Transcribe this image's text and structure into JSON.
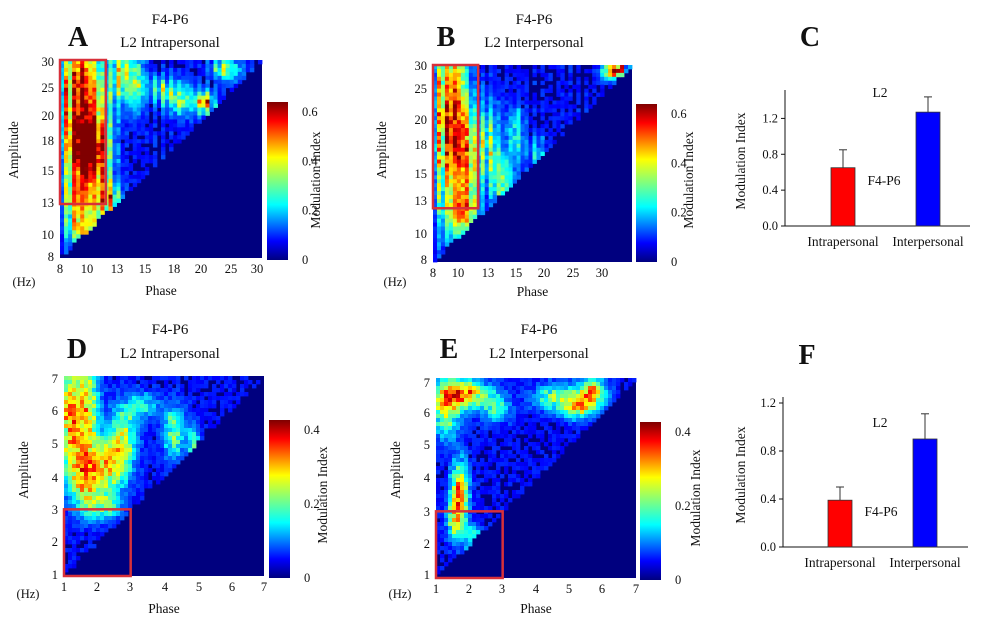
{
  "colors": {
    "bar_intra": "#ff0000",
    "bar_inter": "#0000ff",
    "box": "#d8303a",
    "background": "#00007f"
  },
  "colormap": "jet",
  "panels": [
    {
      "id": "A",
      "letter": "A",
      "title1": "F4-P6",
      "title2": "L2 Intrapersonal",
      "ylabel": "Amplitude",
      "xlabel": "Phase",
      "hz": "(Hz)",
      "xticks": [
        "8",
        "10",
        "13",
        "15",
        "18",
        "20",
        "25",
        "30"
      ],
      "yticks": [
        "8",
        "10",
        "13",
        "15",
        "18",
        "20",
        "25",
        "30"
      ],
      "cbar_label": "Modulation Index",
      "cbar_ticks": [
        "0.6",
        "0.4",
        "0.2",
        "0"
      ]
    },
    {
      "id": "B",
      "letter": "B",
      "title1": "F4-P6",
      "title2": "L2 Interpersonal",
      "ylabel": "Amplitude",
      "xlabel": "Phase",
      "hz": "(Hz)",
      "xticks": [
        "8",
        "10",
        "13",
        "15",
        "20",
        "25",
        "30"
      ],
      "yticks": [
        "8",
        "10",
        "13",
        "15",
        "18",
        "20",
        "25",
        "30"
      ],
      "cbar_label": "Modulation Index",
      "cbar_ticks": [
        "0.6",
        "0.4",
        "0.2",
        "0"
      ]
    },
    {
      "id": "D",
      "letter": "D",
      "title1": "F4-P6",
      "title2": "L2 Intrapersonal",
      "ylabel": "Amplitude",
      "xlabel": "Phase",
      "hz": "(Hz)",
      "xticks": [
        "1",
        "2",
        "3",
        "4",
        "5",
        "6",
        "7"
      ],
      "yticks": [
        "1",
        "2",
        "3",
        "4",
        "5",
        "6",
        "7"
      ],
      "cbar_label": "Modulation Index",
      "cbar_ticks": [
        "0.4",
        "0.2",
        "0"
      ]
    },
    {
      "id": "E",
      "letter": "E",
      "title1": "F4-P6",
      "title2": "L2 Interpersonal",
      "ylabel": "Amplitude",
      "xlabel": "Phase",
      "hz": "(Hz)",
      "xticks": [
        "1",
        "2",
        "3",
        "4",
        "5",
        "6",
        "7"
      ],
      "yticks": [
        "1",
        "2",
        "3",
        "4",
        "5",
        "6",
        "7"
      ],
      "cbar_label": "Modulation Index",
      "cbar_ticks": [
        "0.4",
        "0.2",
        "0"
      ]
    },
    {
      "id": "C",
      "letter": "C",
      "ylabel": "Modulation Index",
      "yticks": [
        "0.0",
        "0.4",
        "0.8",
        "1.2"
      ],
      "series_label": "L2",
      "annot": "F4-P6"
    },
    {
      "id": "F",
      "letter": "F",
      "ylabel": "Modulation Index",
      "yticks": [
        "0.0",
        "0.4",
        "0.8",
        "1.2"
      ],
      "series_label": "L2",
      "annot": "F4-P6"
    }
  ],
  "chart_data": [
    {
      "type": "heatmap",
      "panel": "A",
      "title": "F4-P6 L2 Intrapersonal",
      "xlabel": "Phase",
      "ylabel": "Amplitude",
      "units": "Hz",
      "xlim": [
        8,
        30
      ],
      "ylim": [
        8,
        30
      ],
      "color_range": [
        0,
        0.65
      ],
      "highlight_box": {
        "phase": [
          8,
          13
        ],
        "amplitude": [
          14,
          30
        ]
      },
      "note": "upper-left triangle shows coupling; lower-right triangle zero"
    },
    {
      "type": "heatmap",
      "panel": "B",
      "title": "F4-P6 L2 Interpersonal",
      "xlabel": "Phase",
      "ylabel": "Amplitude",
      "units": "Hz",
      "xlim": [
        8,
        30
      ],
      "ylim": [
        8,
        30
      ],
      "color_range": [
        0,
        0.65
      ],
      "highlight_box": {
        "phase": [
          8,
          13
        ],
        "amplitude": [
          14,
          30
        ]
      }
    },
    {
      "type": "bar",
      "panel": "C",
      "categories": [
        "Intrapersonal",
        "Interpersonal"
      ],
      "values": [
        0.65,
        1.27
      ],
      "errors": [
        0.2,
        0.17
      ],
      "ylim": [
        0,
        1.45
      ],
      "ylabel": "Modulation Index",
      "series": [
        {
          "name": "L2",
          "values": [
            0.65,
            1.27
          ]
        }
      ],
      "annotation": "F4-P6"
    },
    {
      "type": "heatmap",
      "panel": "D",
      "title": "F4-P6 L2 Intrapersonal",
      "xlabel": "Phase",
      "ylabel": "Amplitude",
      "units": "Hz",
      "xlim": [
        1,
        7
      ],
      "ylim": [
        1,
        7
      ],
      "color_range": [
        0,
        0.42
      ],
      "highlight_box": {
        "phase": [
          1,
          3
        ],
        "amplitude": [
          1,
          3
        ]
      }
    },
    {
      "type": "heatmap",
      "panel": "E",
      "title": "F4-P6 L2 Interpersonal",
      "xlabel": "Phase",
      "ylabel": "Amplitude",
      "units": "Hz",
      "xlim": [
        1,
        7
      ],
      "ylim": [
        1,
        7
      ],
      "color_range": [
        0,
        0.42
      ],
      "highlight_box": {
        "phase": [
          1,
          3
        ],
        "amplitude": [
          1,
          3
        ]
      }
    },
    {
      "type": "bar",
      "panel": "F",
      "categories": [
        "Intrapersonal",
        "Interpersonal"
      ],
      "values": [
        0.39,
        0.9
      ],
      "errors": [
        0.11,
        0.21
      ],
      "ylim": [
        0,
        1.2
      ],
      "ylabel": "Modulation Index",
      "series": [
        {
          "name": "L2",
          "values": [
            0.39,
            0.9
          ]
        }
      ],
      "annotation": "F4-P6"
    }
  ]
}
